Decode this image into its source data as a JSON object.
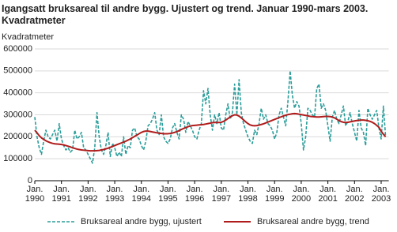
{
  "chart_data": {
    "type": "line",
    "title_lines": [
      "Igangsatt bruksareal til andre bygg. Ujustert og trend. Januar 1990-mars 2003.",
      "Kvadratmeter"
    ],
    "y_label": "Kvadratmeter",
    "x": [
      "1990-01",
      "1990-02",
      "1990-03",
      "1990-04",
      "1990-05",
      "1990-06",
      "1990-07",
      "1990-08",
      "1990-09",
      "1990-10",
      "1990-11",
      "1990-12",
      "1991-01",
      "1991-02",
      "1991-03",
      "1991-04",
      "1991-05",
      "1991-06",
      "1991-07",
      "1991-08",
      "1991-09",
      "1991-10",
      "1991-11",
      "1991-12",
      "1992-01",
      "1992-02",
      "1992-03",
      "1992-04",
      "1992-05",
      "1992-06",
      "1992-07",
      "1992-08",
      "1992-09",
      "1992-10",
      "1992-11",
      "1992-12",
      "1993-01",
      "1993-02",
      "1993-03",
      "1993-04",
      "1993-05",
      "1993-06",
      "1993-07",
      "1993-08",
      "1993-09",
      "1993-10",
      "1993-11",
      "1993-12",
      "1994-01",
      "1994-02",
      "1994-03",
      "1994-04",
      "1994-05",
      "1994-06",
      "1994-07",
      "1994-08",
      "1994-09",
      "1994-10",
      "1994-11",
      "1994-12",
      "1995-01",
      "1995-02",
      "1995-03",
      "1995-04",
      "1995-05",
      "1995-06",
      "1995-07",
      "1995-08",
      "1995-09",
      "1995-10",
      "1995-11",
      "1995-12",
      "1996-01",
      "1996-02",
      "1996-03",
      "1996-04",
      "1996-05",
      "1996-06",
      "1996-07",
      "1996-08",
      "1996-09",
      "1996-10",
      "1996-11",
      "1996-12",
      "1997-01",
      "1997-02",
      "1997-03",
      "1997-04",
      "1997-05",
      "1997-06",
      "1997-07",
      "1997-08",
      "1997-09",
      "1997-10",
      "1997-11",
      "1997-12",
      "1998-01",
      "1998-02",
      "1998-03",
      "1998-04",
      "1998-05",
      "1998-06",
      "1998-07",
      "1998-08",
      "1998-09",
      "1998-10",
      "1998-11",
      "1998-12",
      "1999-01",
      "1999-02",
      "1999-03",
      "1999-04",
      "1999-05",
      "1999-06",
      "1999-07",
      "1999-08",
      "1999-09",
      "1999-10",
      "1999-11",
      "1999-12",
      "2000-01",
      "2000-02",
      "2000-03",
      "2000-04",
      "2000-05",
      "2000-06",
      "2000-07",
      "2000-08",
      "2000-09",
      "2000-10",
      "2000-11",
      "2000-12",
      "2001-01",
      "2001-02",
      "2001-03",
      "2001-04",
      "2001-05",
      "2001-06",
      "2001-07",
      "2001-08",
      "2001-09",
      "2001-10",
      "2001-11",
      "2001-12",
      "2002-01",
      "2002-02",
      "2002-03",
      "2002-04",
      "2002-05",
      "2002-06",
      "2002-07",
      "2002-08",
      "2002-09",
      "2002-10",
      "2002-11",
      "2002-12",
      "2003-01",
      "2003-02",
      "2003-03"
    ],
    "series": [
      {
        "name": "Bruksareal andre bygg, ujustert",
        "color": "#2a9d9a",
        "dashed": true,
        "values": [
          290000,
          200000,
          150000,
          120000,
          180000,
          230000,
          200000,
          190000,
          210000,
          230000,
          180000,
          260000,
          190000,
          160000,
          140000,
          150000,
          130000,
          140000,
          230000,
          190000,
          200000,
          220000,
          150000,
          140000,
          120000,
          100000,
          80000,
          150000,
          310000,
          200000,
          140000,
          120000,
          160000,
          220000,
          110000,
          170000,
          150000,
          110000,
          130000,
          110000,
          200000,
          120000,
          160000,
          150000,
          230000,
          240000,
          200000,
          190000,
          160000,
          140000,
          180000,
          250000,
          260000,
          280000,
          310000,
          230000,
          210000,
          300000,
          200000,
          180000,
          170000,
          190000,
          240000,
          260000,
          220000,
          190000,
          300000,
          280000,
          220000,
          270000,
          250000,
          230000,
          200000,
          190000,
          230000,
          260000,
          410000,
          350000,
          420000,
          300000,
          230000,
          300000,
          260000,
          310000,
          240000,
          230000,
          300000,
          350000,
          280000,
          310000,
          440000,
          300000,
          460000,
          310000,
          260000,
          230000,
          200000,
          180000,
          170000,
          230000,
          210000,
          260000,
          330000,
          280000,
          300000,
          260000,
          250000,
          230000,
          190000,
          220000,
          300000,
          330000,
          290000,
          250000,
          360000,
          500000,
          390000,
          330000,
          360000,
          340000,
          260000,
          140000,
          200000,
          330000,
          320000,
          300000,
          290000,
          420000,
          440000,
          330000,
          350000,
          320000,
          250000,
          180000,
          290000,
          320000,
          280000,
          260000,
          300000,
          340000,
          250000,
          270000,
          310000,
          260000,
          220000,
          180000,
          320000,
          240000,
          220000,
          160000,
          330000,
          300000,
          280000,
          300000,
          320000,
          240000,
          190000,
          340000,
          200000
        ]
      },
      {
        "name": "Bruksareal andre bygg, trend",
        "color": "#b01c1c",
        "dashed": false,
        "values": [
          230000,
          218000,
          205000,
          195000,
          188000,
          182000,
          177000,
          173000,
          170000,
          168000,
          167000,
          166000,
          165000,
          163000,
          160000,
          157000,
          154000,
          150000,
          147000,
          144000,
          142000,
          140000,
          139000,
          138000,
          137000,
          136000,
          136000,
          136000,
          137000,
          138000,
          140000,
          142000,
          145000,
          148000,
          152000,
          156000,
          160000,
          164000,
          168000,
          172000,
          176000,
          180000,
          185000,
          190000,
          196000,
          202000,
          208000,
          214000,
          220000,
          224000,
          226000,
          226000,
          224000,
          222000,
          220000,
          218000,
          216000,
          215000,
          214000,
          214000,
          214000,
          215000,
          217000,
          220000,
          224000,
          228000,
          233000,
          238000,
          242000,
          246000,
          249000,
          251000,
          252000,
          253000,
          254000,
          255000,
          256000,
          258000,
          260000,
          262000,
          264000,
          265000,
          265000,
          265000,
          266000,
          270000,
          276000,
          283000,
          290000,
          296000,
          300000,
          299000,
          294000,
          286000,
          277000,
          268000,
          260000,
          254000,
          251000,
          250000,
          251000,
          253000,
          256000,
          259000,
          263000,
          267000,
          271000,
          275000,
          279000,
          283000,
          287000,
          291000,
          295000,
          298000,
          301000,
          303000,
          305000,
          306000,
          305000,
          303000,
          301000,
          299000,
          297000,
          295000,
          293000,
          292000,
          291000,
          290000,
          290000,
          291000,
          292000,
          293000,
          293000,
          292000,
          290000,
          286000,
          280000,
          274000,
          269000,
          266000,
          265000,
          266000,
          268000,
          270000,
          272000,
          274000,
          275000,
          276000,
          276000,
          275000,
          273000,
          270000,
          266000,
          260000,
          252000,
          243000,
          225000,
          212000,
          200000
        ]
      }
    ],
    "xlim": [
      "1990-01",
      "2003-03"
    ],
    "xticks": [
      {
        "value": "1990-01",
        "label": "Jan. 1990"
      },
      {
        "value": "1991-01",
        "label": "Jan. 1991"
      },
      {
        "value": "1992-01",
        "label": "Jan. 1992"
      },
      {
        "value": "1993-01",
        "label": "Jan. 1993"
      },
      {
        "value": "1994-01",
        "label": "Jan. 1994"
      },
      {
        "value": "1995-01",
        "label": "Jan. 1995"
      },
      {
        "value": "1996-01",
        "label": "Jan. 1996"
      },
      {
        "value": "1997-01",
        "label": "Jan. 1997"
      },
      {
        "value": "1998-01",
        "label": "Jan. 1998"
      },
      {
        "value": "1999-01",
        "label": "Jan. 1999"
      },
      {
        "value": "2000-01",
        "label": "Jan. 2000"
      },
      {
        "value": "2001-01",
        "label": "Jan. 2001"
      },
      {
        "value": "2002-01",
        "label": "Jan. 2002"
      },
      {
        "value": "2003-01",
        "label": "Jan. 2003"
      }
    ],
    "ylim": [
      0,
      600000
    ],
    "yticks": [
      0,
      100000,
      200000,
      300000,
      400000,
      500000,
      600000
    ],
    "grid": true
  }
}
